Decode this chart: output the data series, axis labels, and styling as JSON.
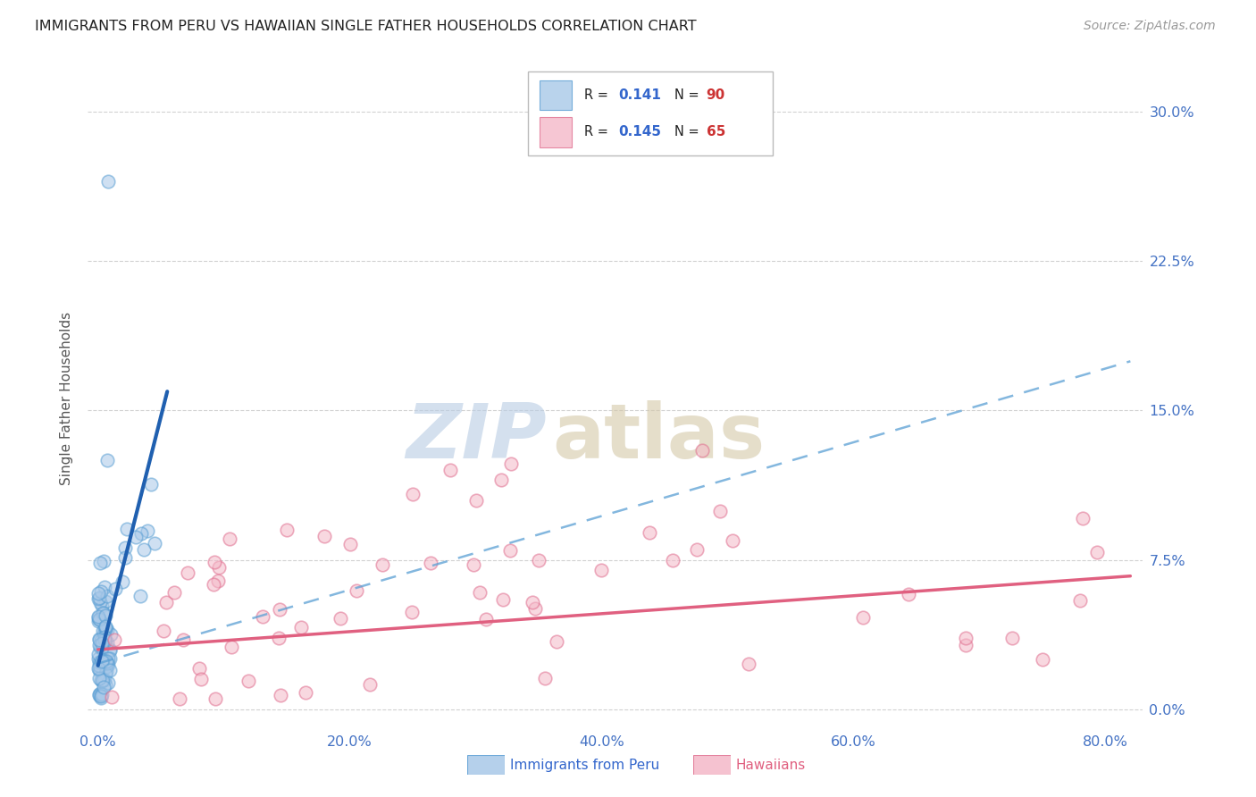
{
  "title": "IMMIGRANTS FROM PERU VS HAWAIIAN SINGLE FATHER HOUSEHOLDS CORRELATION CHART",
  "source": "Source: ZipAtlas.com",
  "ylabel": "Single Father Households",
  "xlim": [
    -0.008,
    0.83
  ],
  "ylim": [
    -0.008,
    0.32
  ],
  "legend_peru_R": "0.141",
  "legend_peru_N": "90",
  "legend_hawaii_R": "0.145",
  "legend_hawaii_N": "65",
  "blue_color": "#a8c8e8",
  "blue_edge": "#5a9fd4",
  "blue_line": "#2060b0",
  "pink_color": "#f4b8c8",
  "pink_edge": "#e07090",
  "pink_line": "#e06080",
  "x_ticks": [
    0.0,
    0.2,
    0.4,
    0.6,
    0.8
  ],
  "x_labels": [
    "0.0%",
    "20.0%",
    "40.0%",
    "60.0%",
    "80.0%"
  ],
  "y_ticks": [
    0.0,
    0.075,
    0.15,
    0.225,
    0.3
  ],
  "y_labels": [
    "0.0%",
    "7.5%",
    "15.0%",
    "22.5%",
    "30.0%"
  ],
  "tick_color": "#4472c4",
  "grid_color": "#cccccc",
  "watermark_zip_color": "#b8cce4",
  "watermark_atlas_color": "#d4c8b0",
  "legend_label_peru": "Immigrants from Peru",
  "legend_label_hawaii": "Hawaiians"
}
